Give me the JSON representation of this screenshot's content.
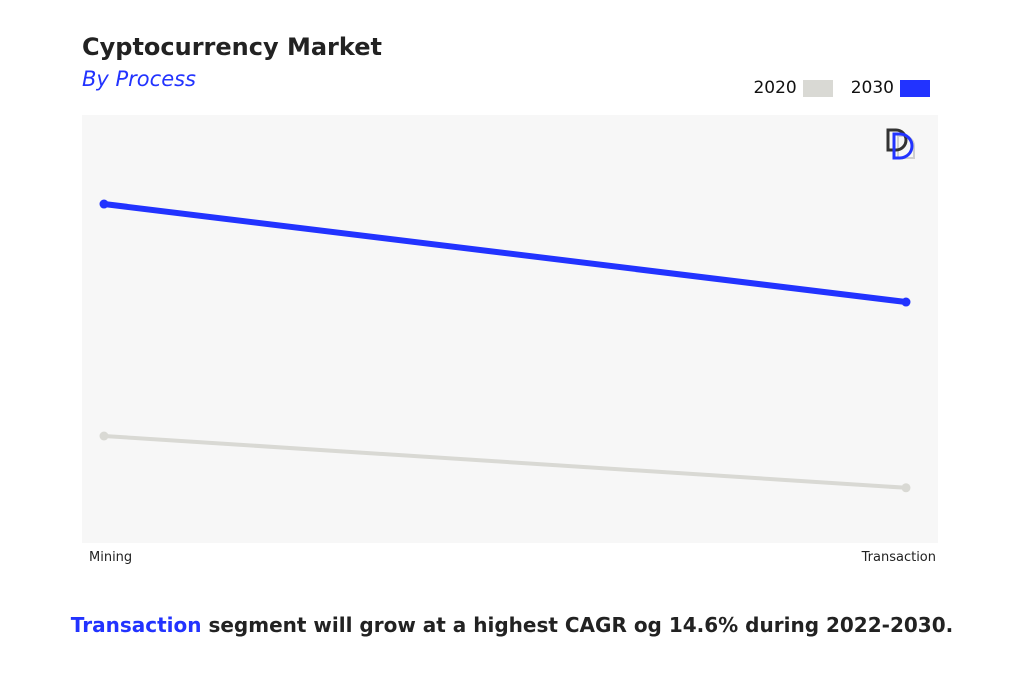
{
  "chart_data": {
    "type": "line",
    "title": "Cyptocurrency Market",
    "subtitle": "By Process",
    "categories": [
      "Mining",
      "Transaction"
    ],
    "series": [
      {
        "name": "2020",
        "values": [
          25.0,
          12.9
        ],
        "color": "#d9d9d4"
      },
      {
        "name": "2030",
        "values": [
          79.2,
          56.3
        ],
        "color": "#2233ff"
      }
    ],
    "ylim": [
      0,
      100
    ],
    "grid": false,
    "legend": "top-right",
    "plot_background": "#f7f7f7"
  },
  "footer": {
    "highlight": "Transaction",
    "text": " segment will grow at a highest CAGR og 14.6% during 2022-2030."
  }
}
